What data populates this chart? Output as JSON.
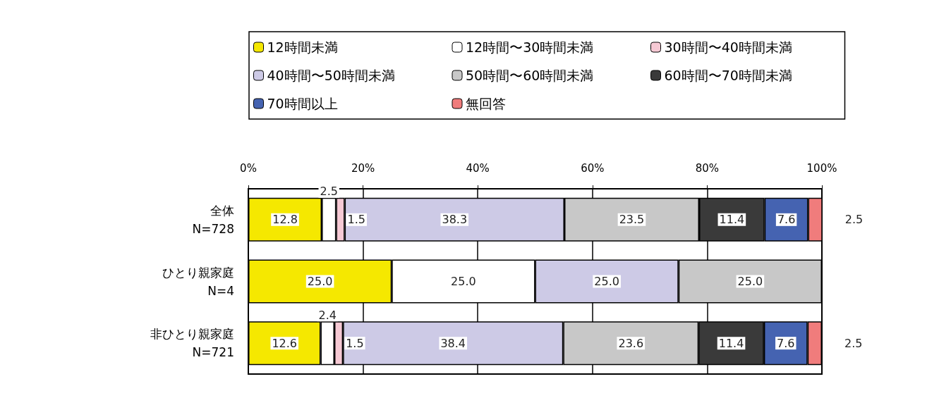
{
  "chart_data": {
    "type": "bar",
    "orientation": "horizontal",
    "stacked": true,
    "categories": [
      "全体\nN=728",
      "ひとり親家庭\nN=4",
      "非ひとり親家庭\nN=721"
    ],
    "series": [
      {
        "name": "12時間未満",
        "color": "#f5e800",
        "values": [
          12.8,
          25,
          12.6
        ],
        "value_labels": [
          "12.8",
          "25.0",
          "12.6"
        ]
      },
      {
        "name": "12時間〜30時間未満",
        "color": "#ffffff",
        "values": [
          2.5,
          25,
          2.4
        ],
        "value_labels": [
          "2.5",
          "25.0",
          "2.4"
        ]
      },
      {
        "name": "30時間〜40時間未満",
        "color": "#f6c9d4",
        "values": [
          1.5,
          null,
          1.5
        ],
        "value_labels": [
          "1.5",
          null,
          "1.5"
        ]
      },
      {
        "name": "40時間〜50時間未満",
        "color": "#cdcae6",
        "values": [
          38.3,
          25,
          38.4
        ],
        "value_labels": [
          "38.3",
          "25.0",
          "38.4"
        ]
      },
      {
        "name": "50時間〜60時間未満",
        "color": "#c8c8c8",
        "values": [
          23.5,
          25,
          23.6
        ],
        "value_labels": [
          "23.5",
          "25.0",
          "23.6"
        ]
      },
      {
        "name": "60時間〜70時間未満",
        "color": "#3a3a3a",
        "values": [
          11.4,
          null,
          11.4
        ],
        "value_labels": [
          "11.4",
          null,
          "11.4"
        ]
      },
      {
        "name": "70時間以上",
        "color": "#4563b1",
        "values": [
          7.6,
          null,
          7.6
        ],
        "value_labels": [
          "7.6",
          null,
          "7.6"
        ]
      },
      {
        "name": "無回答",
        "color": "#f07c7c",
        "values": [
          2.5,
          null,
          2.5
        ],
        "value_labels": [
          "2.5",
          null,
          "2.5"
        ]
      }
    ],
    "xlim": [
      0,
      100
    ],
    "xticks": [
      {
        "value": 0,
        "label": "0%"
      },
      {
        "value": 20,
        "label": "20%"
      },
      {
        "value": 40,
        "label": "40%"
      },
      {
        "value": 60,
        "label": "60%"
      },
      {
        "value": 80,
        "label": "80%"
      },
      {
        "value": 100,
        "label": "100%"
      }
    ],
    "grid": "x",
    "legend": "top"
  }
}
